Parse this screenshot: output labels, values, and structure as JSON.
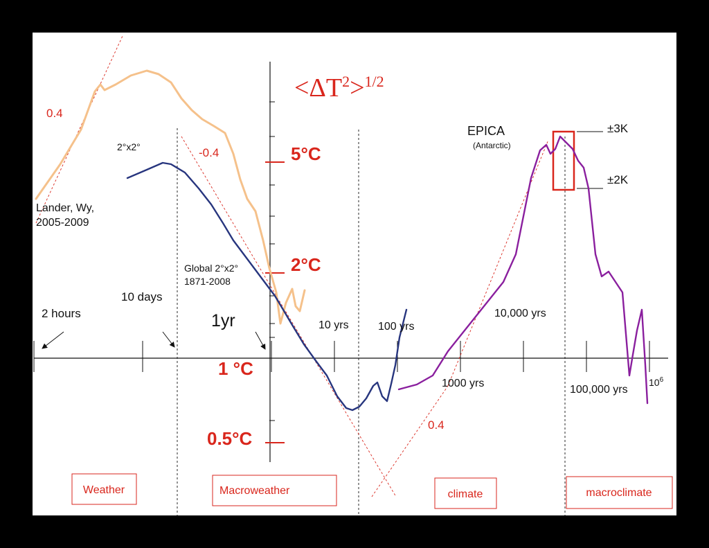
{
  "chart_data": {
    "type": "line",
    "title": "<ΔT²>^1/2",
    "title_parts": {
      "base": "<ΔT",
      "sup1": "2",
      "mid": ">",
      "sup2": "1/2"
    },
    "x_scale": "log",
    "y_scale": "log",
    "xlabel": "",
    "ylabel": "",
    "x_tick_labels": [
      "2 hours",
      "10 days",
      "1yr",
      "10 yrs",
      "100 yrs",
      "1000 yrs",
      "10,000 yrs",
      "100,000 yrs",
      "10^6"
    ],
    "y_ticks": [
      {
        "label": "5°C",
        "value": 5
      },
      {
        "label": "2°C",
        "value": 2
      },
      {
        "label": "1 °C",
        "value": 1
      },
      {
        "label": "0.5°C",
        "value": 0.5
      }
    ],
    "grid": false,
    "legend": "none",
    "series": [
      {
        "key": "lander",
        "color": "#f5c18b",
        "labels": [
          "Lander, Wy,",
          "2005-2009"
        ]
      },
      {
        "key": "global",
        "color": "#27357e",
        "labels": [
          "Global 2°x2°",
          "1871-2008"
        ],
        "extra_label": "2°x2°"
      },
      {
        "key": "epica",
        "color": "#8a1f9e",
        "labels": [
          "EPICA",
          "(Antarctic)"
        ]
      }
    ],
    "slope_labels": [
      "0.4",
      "-0.4",
      "0.4"
    ],
    "annotations": [
      "±3K",
      "±2K"
    ],
    "regimes": [
      "Weather",
      "Macroweather",
      "climate",
      "macroclimate"
    ]
  }
}
